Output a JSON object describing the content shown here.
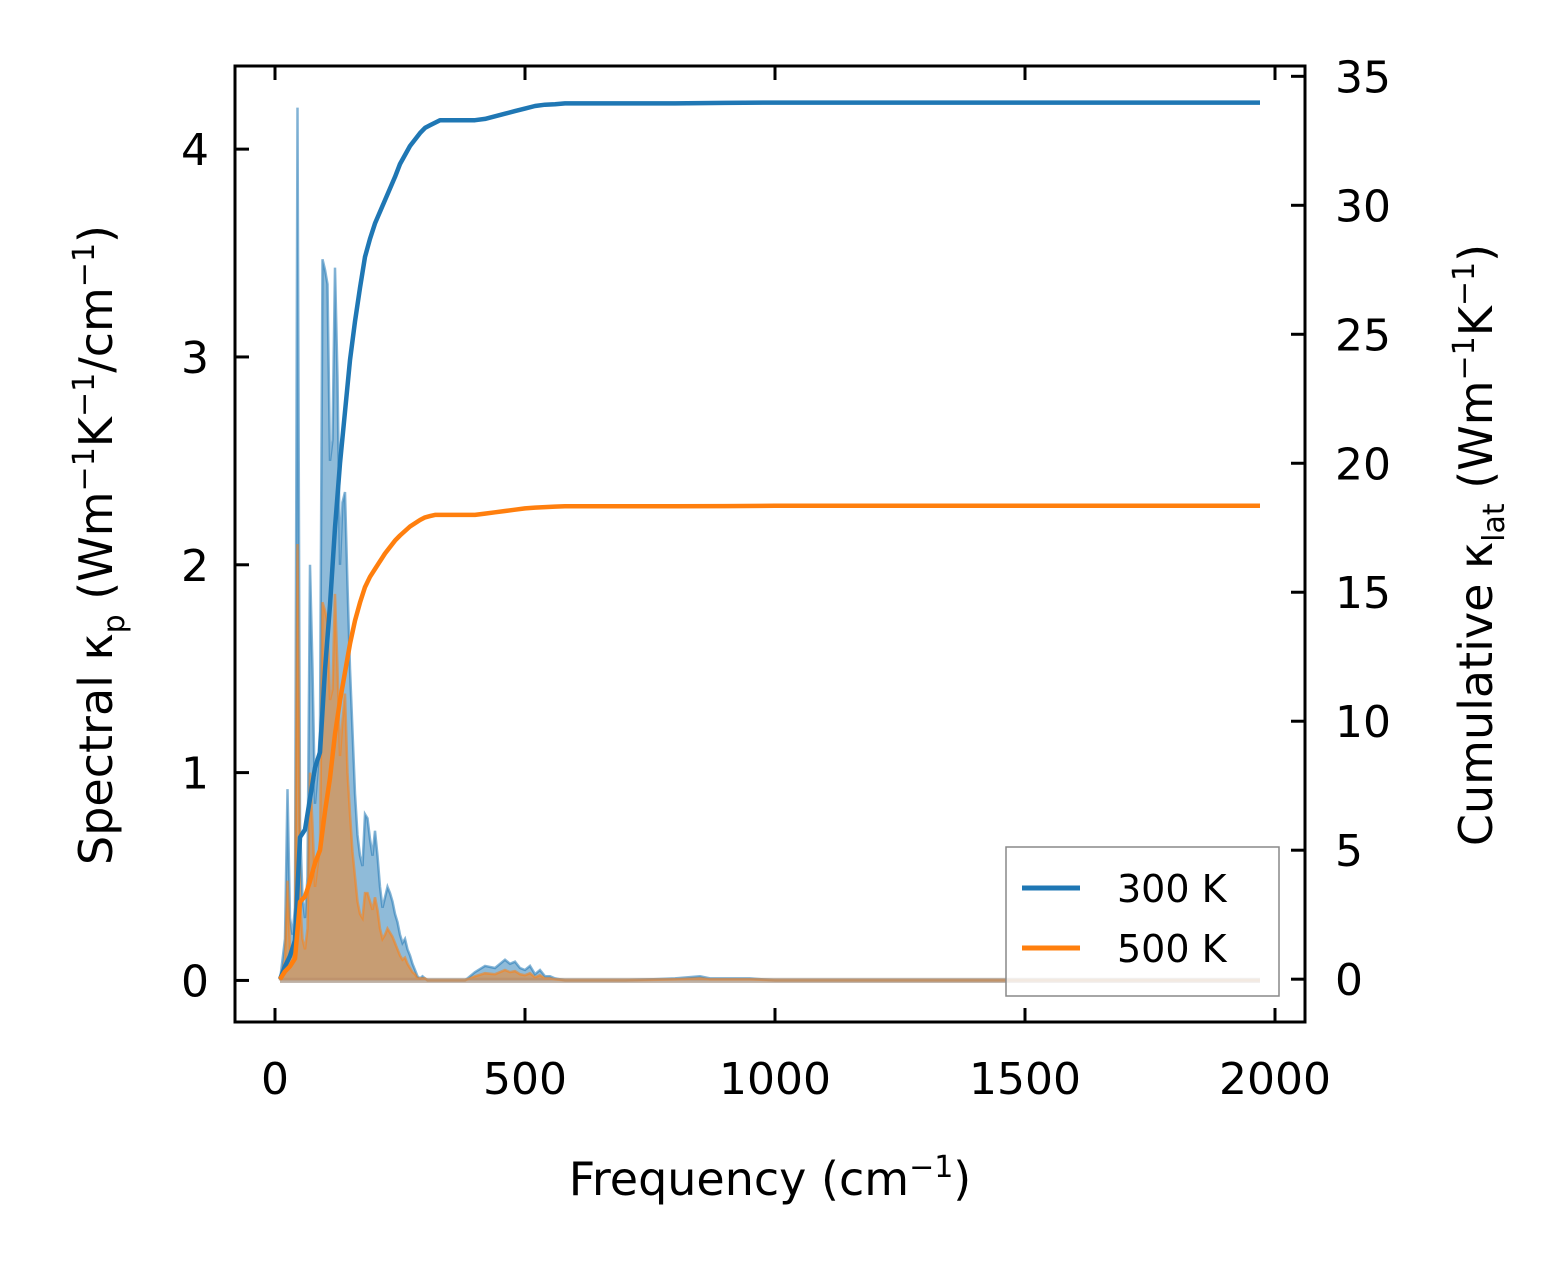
{
  "chart_data": {
    "type": "area",
    "xlabel": "Frequency (cm",
    "xlabel_sup": "−1",
    "xlabel_end": ")",
    "ylabel_left": {
      "prefix": "Spectral κ",
      "sub": "p",
      "mid": " (Wm",
      "sup1": "−1",
      "k": "K",
      "sup2": "−1",
      "unit": "/cm",
      "sup3": "−1",
      "end": ")"
    },
    "ylabel_right": {
      "prefix": "Cumulative κ",
      "sub": "lat",
      "mid": " (Wm",
      "sup1": "−1",
      "k": "K",
      "sup2": "−1",
      "end": ")"
    },
    "xlim": [
      -80,
      2060
    ],
    "ylim_left": [
      -0.2,
      4.4
    ],
    "ylim_right": [
      -1.66,
      35.4
    ],
    "xticks": [
      0,
      500,
      1000,
      1500,
      2000
    ],
    "xtick_labels": [
      "0",
      "500",
      "1000",
      "1500",
      "2000"
    ],
    "yticks_left": [
      0,
      1,
      2,
      3,
      4
    ],
    "ytick_labels_left": [
      "0",
      "1",
      "2",
      "3",
      "4"
    ],
    "yticks_right": [
      0,
      5,
      10,
      15,
      20,
      25,
      30,
      35
    ],
    "ytick_labels_right": [
      "0",
      "5",
      "10",
      "15",
      "20",
      "25",
      "30",
      "35"
    ],
    "legend_position": "lower-right",
    "series": [
      {
        "name": "300 K",
        "color": "#1f77b4",
        "spectral": {
          "x": [
            10,
            20,
            25,
            30,
            35,
            40,
            45,
            50,
            55,
            60,
            65,
            70,
            75,
            80,
            85,
            90,
            95,
            100,
            105,
            110,
            115,
            120,
            125,
            130,
            135,
            140,
            145,
            150,
            155,
            160,
            165,
            170,
            175,
            180,
            185,
            190,
            195,
            200,
            205,
            210,
            215,
            220,
            225,
            230,
            235,
            240,
            245,
            250,
            255,
            260,
            265,
            270,
            275,
            280,
            285,
            290,
            295,
            300,
            305,
            310,
            315,
            320,
            325,
            330,
            335,
            340,
            345,
            350,
            360,
            380,
            400,
            420,
            440,
            460,
            470,
            480,
            490,
            500,
            510,
            520,
            530,
            540,
            550,
            560,
            580,
            600,
            700,
            800,
            850,
            870,
            900,
            950,
            1000,
            1200,
            1500,
            1800,
            1970
          ],
          "y": [
            0,
            0.2,
            0.92,
            0.3,
            0.22,
            0.35,
            4.2,
            0.75,
            0.4,
            0.3,
            0.5,
            2.0,
            1.5,
            0.85,
            1.0,
            1.2,
            3.47,
            3.42,
            3.35,
            2.5,
            2.6,
            3.43,
            2.9,
            2.0,
            2.3,
            2.35,
            1.9,
            1.5,
            1.2,
            0.9,
            0.7,
            0.6,
            0.55,
            0.8,
            0.78,
            0.68,
            0.6,
            0.72,
            0.6,
            0.45,
            0.35,
            0.4,
            0.45,
            0.42,
            0.38,
            0.32,
            0.28,
            0.22,
            0.18,
            0.2,
            0.15,
            0.12,
            0.08,
            0.05,
            0.02,
            0.01,
            0.02,
            0.01,
            0,
            0,
            0,
            0,
            0,
            0,
            0,
            0,
            0,
            0,
            0,
            0,
            0.04,
            0.07,
            0.06,
            0.1,
            0.08,
            0.09,
            0.06,
            0.05,
            0.07,
            0.03,
            0.05,
            0.02,
            0.02,
            0.01,
            0,
            0,
            0,
            0.01,
            0.02,
            0.01,
            0.01,
            0.01,
            0,
            0,
            0,
            0,
            0
          ]
        },
        "cumulative": {
          "x": [
            10,
            20,
            30,
            40,
            50,
            60,
            70,
            80,
            90,
            100,
            110,
            120,
            130,
            140,
            150,
            160,
            170,
            180,
            190,
            200,
            220,
            240,
            250,
            270,
            290,
            300,
            310,
            320,
            330,
            340,
            360,
            380,
            400,
            420,
            440,
            460,
            480,
            500,
            520,
            540,
            560,
            580,
            600,
            700,
            800,
            900,
            1000,
            1200,
            1500,
            1800,
            1970
          ],
          "y": [
            0,
            0.5,
            0.9,
            1.5,
            5.5,
            5.8,
            7.0,
            8.2,
            8.8,
            12.0,
            14.5,
            17.5,
            20.0,
            22.0,
            24.0,
            25.5,
            26.8,
            28.0,
            28.7,
            29.3,
            30.2,
            31.1,
            31.6,
            32.3,
            32.8,
            33.0,
            33.1,
            33.2,
            33.3,
            33.3,
            33.3,
            33.3,
            33.3,
            33.35,
            33.45,
            33.55,
            33.65,
            33.75,
            33.85,
            33.9,
            33.92,
            33.95,
            33.95,
            33.95,
            33.95,
            33.97,
            33.98,
            33.98,
            33.98,
            33.98,
            33.98
          ]
        }
      },
      {
        "name": "500 K",
        "color": "#ff7f0e",
        "spectral": {
          "x": [
            10,
            20,
            25,
            30,
            35,
            40,
            45,
            50,
            55,
            60,
            65,
            70,
            75,
            80,
            85,
            90,
            95,
            100,
            105,
            110,
            115,
            120,
            125,
            130,
            135,
            140,
            145,
            150,
            155,
            160,
            165,
            170,
            175,
            180,
            185,
            190,
            195,
            200,
            205,
            210,
            215,
            220,
            225,
            230,
            235,
            240,
            245,
            250,
            255,
            260,
            265,
            270,
            275,
            280,
            285,
            290,
            295,
            300,
            305,
            310,
            315,
            320,
            325,
            330,
            335,
            340,
            345,
            350,
            360,
            380,
            400,
            420,
            440,
            460,
            470,
            480,
            490,
            500,
            510,
            520,
            530,
            540,
            550,
            560,
            580,
            600,
            700,
            800,
            850,
            870,
            900,
            950,
            1000,
            1200,
            1500,
            1800,
            1970
          ],
          "y": [
            0,
            0.1,
            0.48,
            0.15,
            0.11,
            0.18,
            2.1,
            0.4,
            0.2,
            0.15,
            0.25,
            1.0,
            0.75,
            0.45,
            0.55,
            0.65,
            1.82,
            1.78,
            1.72,
            1.35,
            1.4,
            1.86,
            1.5,
            1.08,
            1.25,
            1.38,
            1.0,
            0.8,
            0.62,
            0.5,
            0.38,
            0.32,
            0.3,
            0.42,
            0.42,
            0.38,
            0.34,
            0.4,
            0.34,
            0.25,
            0.2,
            0.22,
            0.25,
            0.23,
            0.21,
            0.18,
            0.15,
            0.12,
            0.1,
            0.11,
            0.08,
            0.06,
            0.04,
            0.03,
            0.01,
            0.01,
            0.01,
            0.01,
            0,
            0,
            0,
            0,
            0,
            0,
            0,
            0,
            0,
            0,
            0,
            0,
            0.02,
            0.035,
            0.03,
            0.05,
            0.04,
            0.045,
            0.03,
            0.025,
            0.035,
            0.015,
            0.025,
            0.01,
            0.01,
            0.005,
            0,
            0,
            0,
            0.005,
            0.01,
            0.005,
            0.005,
            0.005,
            0,
            0,
            0,
            0,
            0
          ]
        },
        "cumulative": {
          "x": [
            10,
            20,
            30,
            40,
            50,
            60,
            70,
            80,
            90,
            100,
            110,
            120,
            130,
            140,
            150,
            160,
            170,
            180,
            190,
            200,
            220,
            240,
            250,
            270,
            290,
            300,
            310,
            320,
            330,
            340,
            360,
            380,
            400,
            420,
            440,
            460,
            480,
            500,
            520,
            540,
            560,
            580,
            600,
            700,
            800,
            900,
            1000,
            1200,
            1500,
            1800,
            1970
          ],
          "y": [
            0,
            0.3,
            0.5,
            0.8,
            3.0,
            3.2,
            3.8,
            4.5,
            5.0,
            6.5,
            7.8,
            9.5,
            10.8,
            11.9,
            13.0,
            13.9,
            14.6,
            15.2,
            15.6,
            15.9,
            16.5,
            17.0,
            17.2,
            17.55,
            17.8,
            17.9,
            17.95,
            18.0,
            18.0,
            18.0,
            18.0,
            18.0,
            18.0,
            18.05,
            18.1,
            18.15,
            18.2,
            18.25,
            18.28,
            18.3,
            18.32,
            18.33,
            18.33,
            18.33,
            18.33,
            18.34,
            18.35,
            18.35,
            18.35,
            18.35,
            18.35
          ]
        }
      }
    ]
  }
}
